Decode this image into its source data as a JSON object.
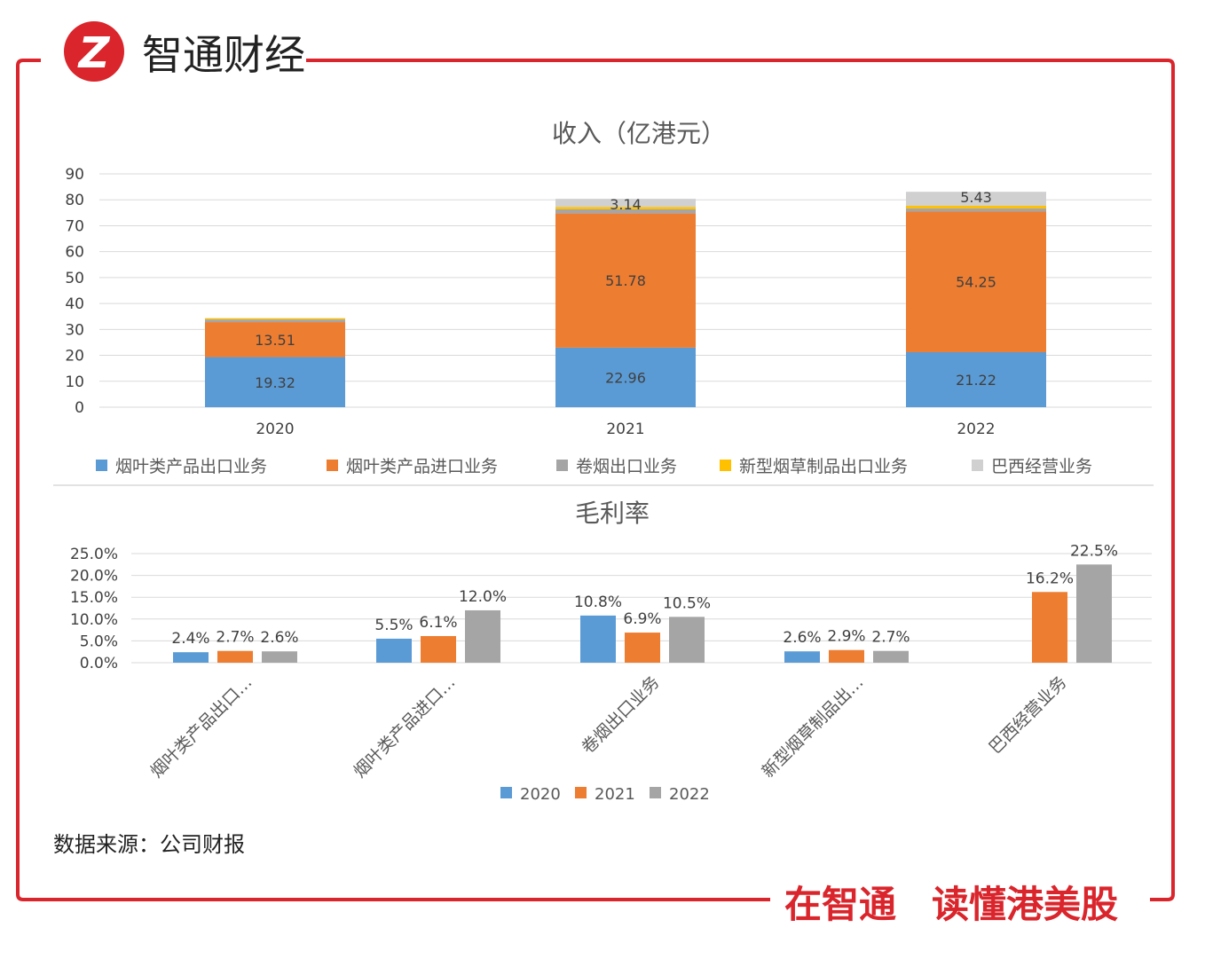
{
  "brand": {
    "logo_letter": "Z",
    "name": "智通财经",
    "slogan_left": "在智通",
    "slogan_right": "读懂港美股"
  },
  "colors": {
    "frame": "#d9252b",
    "s2020": "#5b9bd5",
    "s2021": "#ed7d31",
    "s2022": "#a5a5a5",
    "yellow": "#ffc000",
    "lightgray": "#d0d0d0",
    "grid": "#d9d9d9"
  },
  "source_note": "数据来源：公司财报",
  "chart_data": [
    {
      "type": "bar",
      "stacked": true,
      "title": "收入（亿港元）",
      "categories": [
        "2020",
        "2021",
        "2022"
      ],
      "series": [
        {
          "name": "烟叶类产品出口业务",
          "values": [
            19.32,
            22.96,
            21.22
          ],
          "labels": [
            "19.32",
            "22.96",
            "21.22"
          ]
        },
        {
          "name": "烟叶类产品进口业务",
          "values": [
            13.51,
            51.78,
            54.25
          ],
          "labels": [
            "13.51",
            "51.78",
            "54.25"
          ]
        },
        {
          "name": "卷烟出口业务",
          "values": [
            1.0,
            1.6,
            1.2
          ],
          "labels": [
            "",
            "",
            ""
          ]
        },
        {
          "name": "新型烟草制品出口业务",
          "values": [
            0.5,
            0.9,
            1.0
          ],
          "labels": [
            "",
            "",
            ""
          ]
        },
        {
          "name": "巴西经营业务",
          "values": [
            0.0,
            3.14,
            5.43
          ],
          "labels": [
            "",
            "3.14",
            "5.43"
          ]
        }
      ],
      "yticks": [
        "0",
        "10",
        "20",
        "30",
        "40",
        "50",
        "60",
        "70",
        "80",
        "90"
      ],
      "ylim": [
        0,
        90
      ],
      "legend": "bottom"
    },
    {
      "type": "bar",
      "title": "毛利率",
      "categories": [
        "烟叶类产品出口…",
        "烟叶类产品进口…",
        "卷烟出口业务",
        "新型烟草制品出…",
        "巴西经营业务"
      ],
      "series": [
        {
          "name": "2020",
          "values": [
            2.4,
            5.5,
            10.8,
            2.6,
            null
          ],
          "labels": [
            "2.4%",
            "5.5%",
            "10.8%",
            "2.6%",
            ""
          ]
        },
        {
          "name": "2021",
          "values": [
            2.7,
            6.1,
            6.9,
            2.9,
            16.2
          ],
          "labels": [
            "2.7%",
            "6.1%",
            "6.9%",
            "2.9%",
            "16.2%"
          ]
        },
        {
          "name": "2022",
          "values": [
            2.6,
            12.0,
            10.5,
            2.7,
            22.5
          ],
          "labels": [
            "2.6%",
            "12.0%",
            "10.5%",
            "2.7%",
            "22.5%"
          ]
        }
      ],
      "yticks": [
        "0.0%",
        "5.0%",
        "10.0%",
        "15.0%",
        "20.0%",
        "25.0%"
      ],
      "ylim": [
        0,
        25
      ],
      "legend": "bottom"
    }
  ]
}
